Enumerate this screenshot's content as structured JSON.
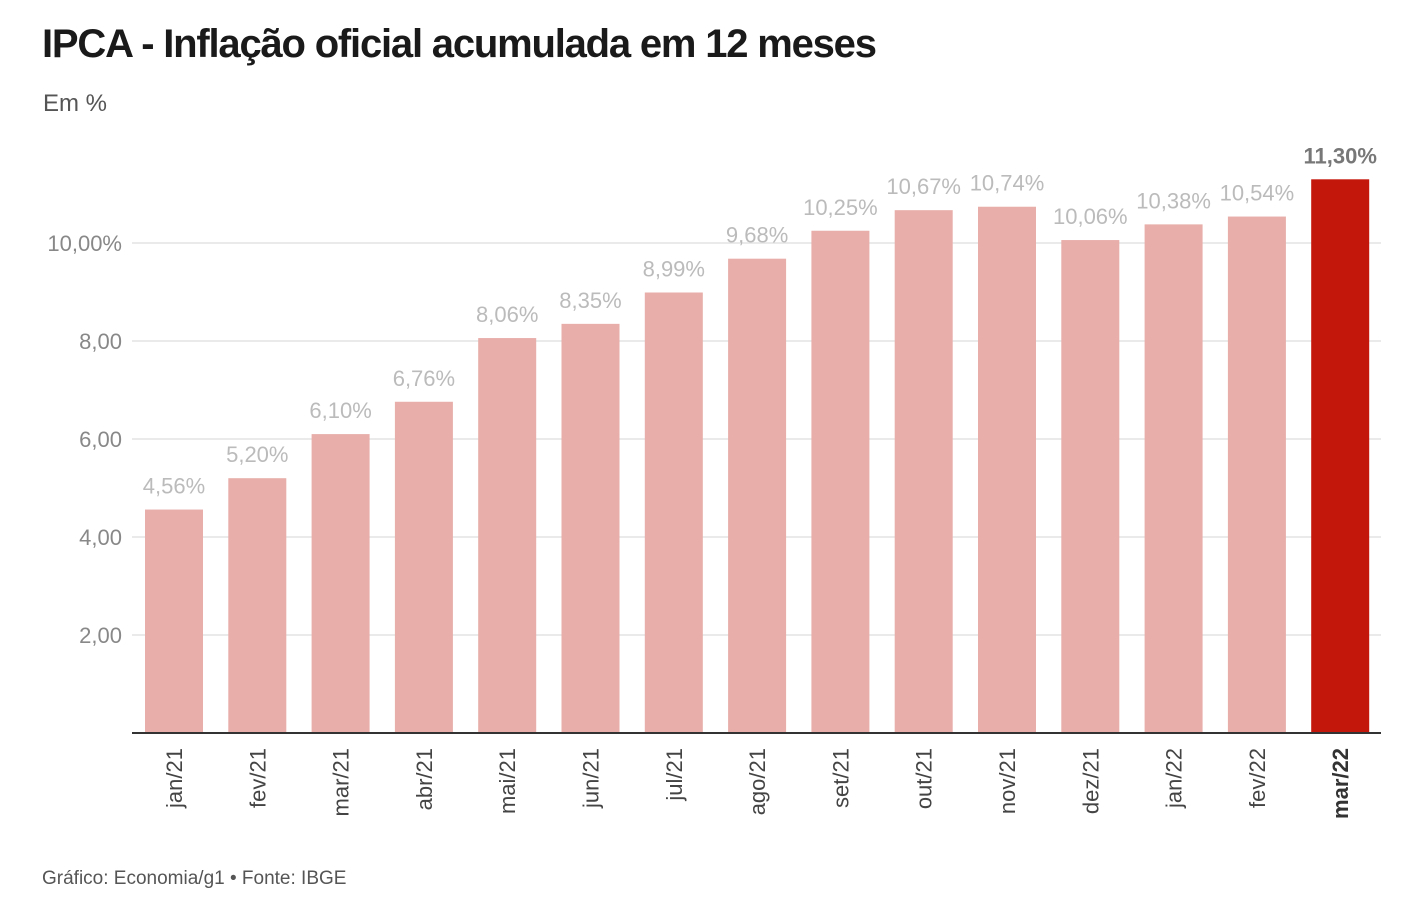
{
  "header": {
    "title": "IPCA - Inflação oficial acumulada em 12 meses",
    "subtitle": "Em %"
  },
  "footer": {
    "source": "Gráfico: Economia/g1 • Fonte: IBGE"
  },
  "chart_data": {
    "type": "bar",
    "categories": [
      "jan/21",
      "fev/21",
      "mar/21",
      "abr/21",
      "mai/21",
      "jun/21",
      "jul/21",
      "ago/21",
      "set/21",
      "out/21",
      "nov/21",
      "dez/21",
      "jan/22",
      "fev/22",
      "mar/22"
    ],
    "values": [
      4.56,
      5.2,
      6.1,
      6.76,
      8.06,
      8.35,
      8.99,
      9.68,
      10.25,
      10.67,
      10.74,
      10.06,
      10.38,
      10.54,
      11.3
    ],
    "value_labels": [
      "4,56%",
      "5,20%",
      "6,10%",
      "6,76%",
      "8,06%",
      "8,35%",
      "8,99%",
      "9,68%",
      "10,25%",
      "10,67%",
      "10,74%",
      "10,06%",
      "10,38%",
      "10,54%",
      "11,30%"
    ],
    "yticks": [
      2,
      4,
      6,
      8,
      10
    ],
    "ytick_labels": [
      "2,00",
      "4,00",
      "6,00",
      "8,00",
      "10,00%"
    ],
    "ylim": [
      0,
      11.3
    ],
    "highlight_index": 14,
    "grid": true,
    "colors": {
      "bar": "#e8aeaa",
      "highlight": "#c4170c",
      "grid": "#e3e3e3",
      "axis": "#333333"
    }
  }
}
